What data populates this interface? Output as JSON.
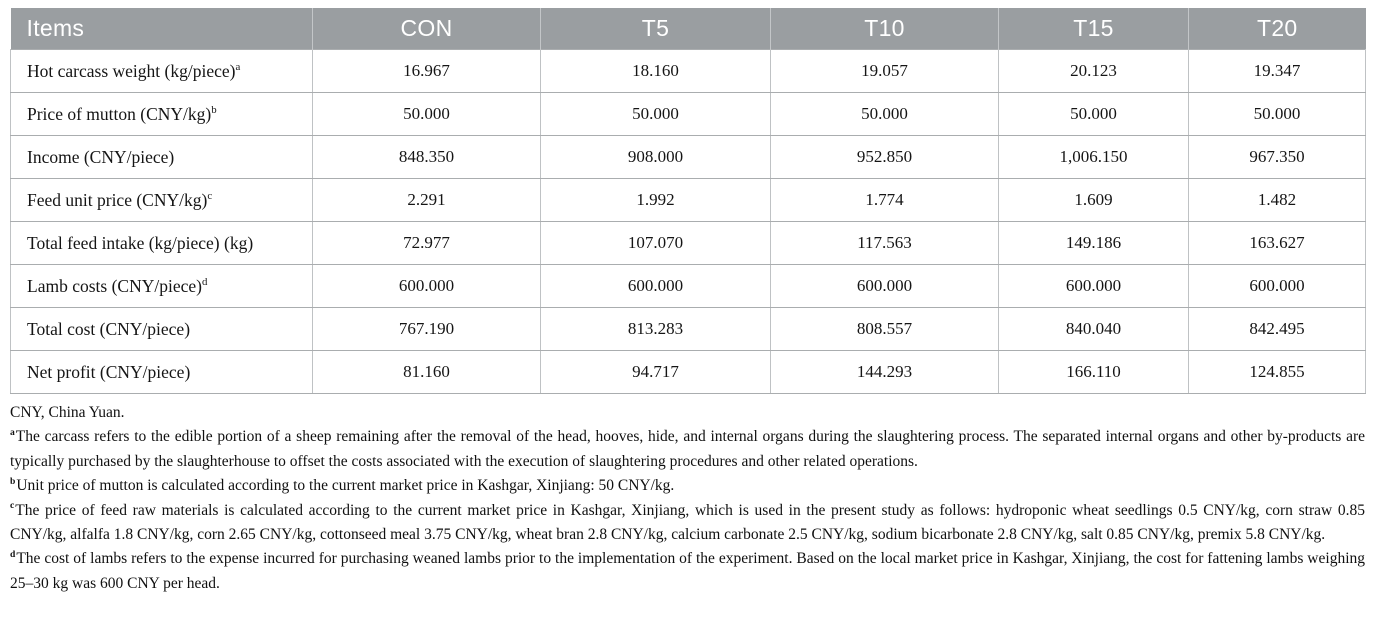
{
  "table": {
    "columns": [
      "Items",
      "CON",
      "T5",
      "T10",
      "T15",
      "T20"
    ],
    "rows": [
      {
        "label": "Hot carcass weight (kg/piece)",
        "sup": "a",
        "values": [
          "16.967",
          "18.160",
          "19.057",
          "20.123",
          "19.347"
        ]
      },
      {
        "label": "Price of mutton (CNY/kg)",
        "sup": "b",
        "values": [
          "50.000",
          "50.000",
          "50.000",
          "50.000",
          "50.000"
        ]
      },
      {
        "label": "Income (CNY/piece)",
        "sup": "",
        "values": [
          "848.350",
          "908.000",
          "952.850",
          "1,006.150",
          "967.350"
        ]
      },
      {
        "label": "Feed unit price (CNY/kg)",
        "sup": "c",
        "values": [
          "2.291",
          "1.992",
          "1.774",
          "1.609",
          "1.482"
        ]
      },
      {
        "label": "Total feed intake (kg/piece) (kg)",
        "sup": "",
        "values": [
          "72.977",
          "107.070",
          "117.563",
          "149.186",
          "163.627"
        ]
      },
      {
        "label": "Lamb costs (CNY/piece)",
        "sup": "d",
        "values": [
          "600.000",
          "600.000",
          "600.000",
          "600.000",
          "600.000"
        ]
      },
      {
        "label": "Total cost (CNY/piece)",
        "sup": "",
        "values": [
          "767.190",
          "813.283",
          "808.557",
          "840.040",
          "842.495"
        ]
      },
      {
        "label": "Net profit (CNY/piece)",
        "sup": "",
        "values": [
          "81.160",
          "94.717",
          "144.293",
          "166.110",
          "124.855"
        ]
      }
    ]
  },
  "footnotes": [
    {
      "sup": "",
      "text": "CNY, China Yuan."
    },
    {
      "sup": "a",
      "text": "The carcass refers to the edible portion of a sheep remaining after the removal of the head, hooves, hide, and internal organs during the slaughtering process. The separated internal organs and other by-products are typically purchased by the slaughterhouse to offset the costs associated with the execution of slaughtering procedures and other related operations."
    },
    {
      "sup": "b",
      "text": "Unit price of mutton is calculated according to the current market price in Kashgar, Xinjiang: 50 CNY/kg."
    },
    {
      "sup": "c",
      "text": "The price of feed raw materials is calculated according to the current market price in Kashgar, Xinjiang, which is used in the present study as follows: hydroponic wheat seedlings 0.5 CNY/kg, corn straw 0.85 CNY/kg, alfalfa 1.8 CNY/kg, corn 2.65 CNY/kg, cottonseed meal 3.75 CNY/kg, wheat bran 2.8 CNY/kg, calcium carbonate 2.5 CNY/kg, sodium bicarbonate 2.8 CNY/kg, salt 0.85 CNY/kg, premix 5.8 CNY/kg."
    },
    {
      "sup": "d",
      "text": "The cost of lambs refers to the expense incurred for purchasing weaned lambs prior to the implementation of the experiment. Based on the local market price in Kashgar, Xinjiang, the cost for fattening lambs weighing 25–30 kg was 600 CNY per head."
    }
  ],
  "colors": {
    "header_bg": "#9a9ea1",
    "header_text": "#ffffff",
    "grid_line": "#bfc2c4",
    "body_text": "#151515"
  }
}
